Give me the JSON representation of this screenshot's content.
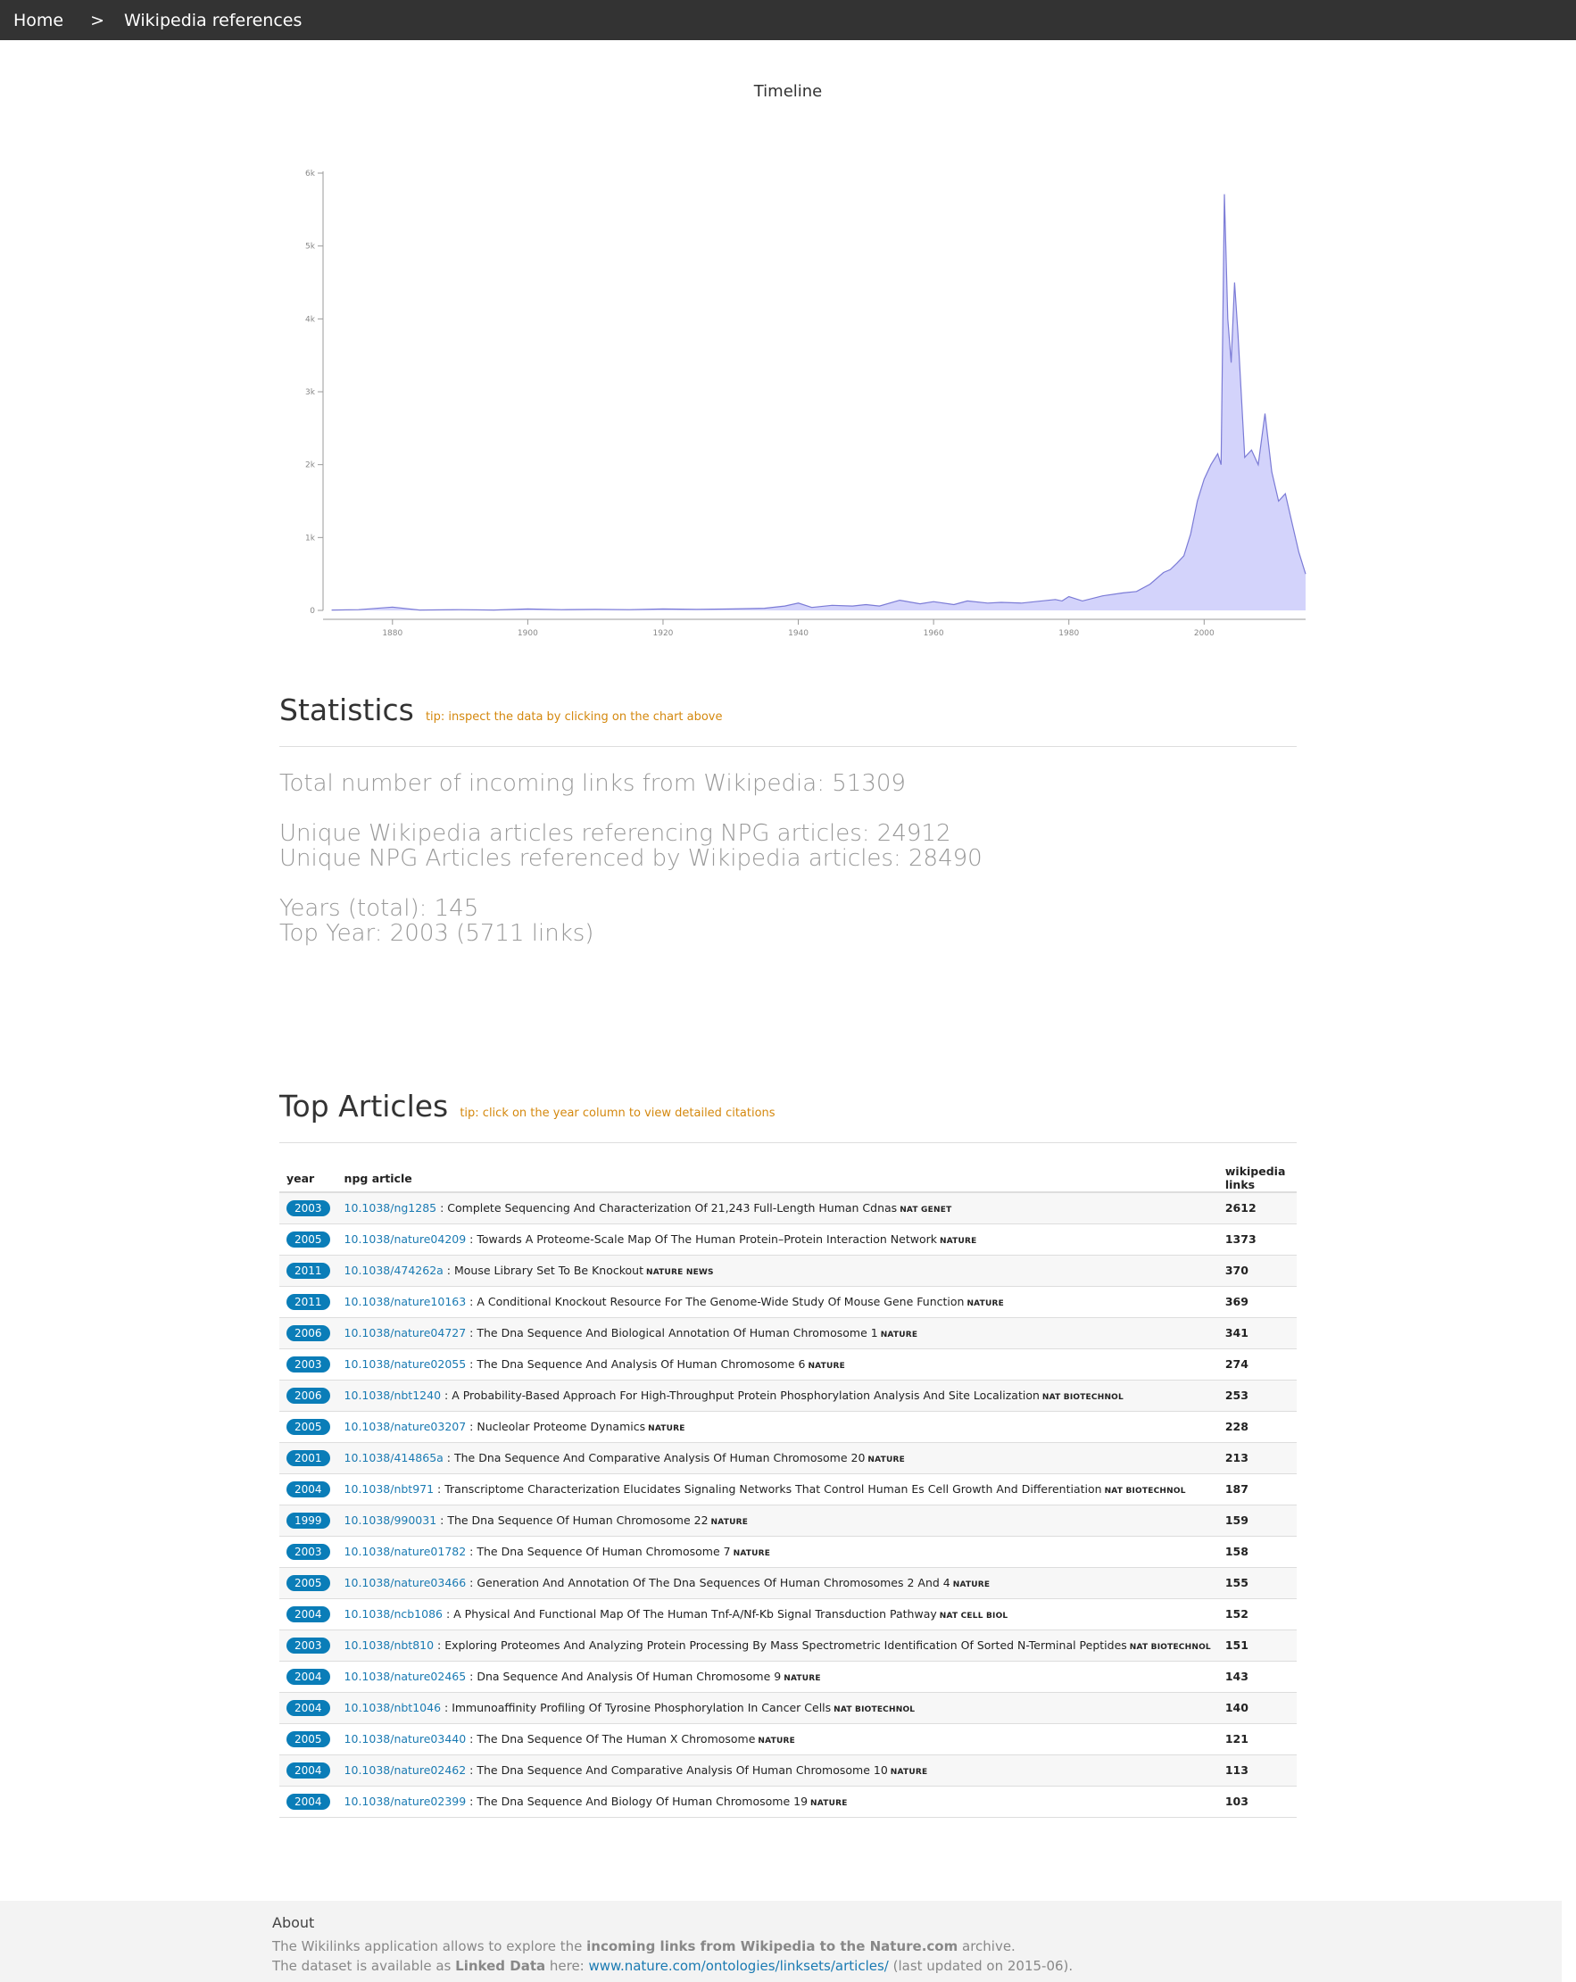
{
  "nav": {
    "home": "Home",
    "separator": ">",
    "current": "Wikipedia references"
  },
  "chart_title": "Timeline",
  "chart_data": {
    "type": "area",
    "title": "Timeline",
    "xlabel": "",
    "ylabel": "",
    "xlim": [
      1870,
      2015
    ],
    "ylim": [
      0,
      6000
    ],
    "x_ticks": [
      "1880",
      "1900",
      "1920",
      "1940",
      "1960",
      "1980",
      "2000"
    ],
    "y_ticks": [
      "0",
      "1k",
      "2k",
      "3k",
      "4k",
      "5k",
      "6k"
    ],
    "grid": false,
    "colors": {
      "fill": "#d3d3fb",
      "stroke": "#7b7bd6"
    },
    "x": [
      1871,
      1875,
      1880,
      1884,
      1890,
      1895,
      1900,
      1905,
      1910,
      1915,
      1920,
      1925,
      1930,
      1935,
      1938,
      1940,
      1942,
      1945,
      1948,
      1950,
      1952,
      1955,
      1958,
      1960,
      1963,
      1965,
      1968,
      1970,
      1973,
      1975,
      1978,
      1979,
      1980,
      1982,
      1985,
      1988,
      1990,
      1992,
      1994,
      1995,
      1996,
      1997,
      1998,
      1999,
      2000,
      2001,
      2002,
      2002.5,
      2003,
      2003.5,
      2004,
      2004.5,
      2005,
      2006,
      2007,
      2008,
      2009,
      2010,
      2011,
      2012,
      2013,
      2014,
      2015
    ],
    "values": [
      5,
      10,
      45,
      5,
      10,
      5,
      20,
      10,
      15,
      10,
      20,
      15,
      20,
      30,
      60,
      100,
      40,
      70,
      60,
      80,
      60,
      140,
      90,
      120,
      80,
      130,
      100,
      110,
      100,
      120,
      150,
      130,
      190,
      130,
      200,
      240,
      260,
      360,
      520,
      560,
      650,
      750,
      1050,
      1500,
      1800,
      2000,
      2150,
      2000,
      5711,
      4000,
      3400,
      4500,
      3800,
      2100,
      2200,
      2000,
      2700,
      1900,
      1500,
      1600,
      1200,
      800,
      500
    ]
  },
  "statistics": {
    "heading": "Statistics",
    "tip": "tip: inspect the data by clicking on the chart above",
    "total_links": "Total number of incoming links from Wikipedia: 51309",
    "unique_wiki": "Unique Wikipedia articles referencing NPG articles: 24912",
    "unique_npg": "Unique NPG Articles referenced by Wikipedia articles: 28490",
    "years_total": "Years (total): 145",
    "top_year": "Top Year: 2003 (5711 links)"
  },
  "top_articles": {
    "heading": "Top Articles",
    "tip": "tip: click on the year column to view detailed citations",
    "columns": {
      "year": "year",
      "article": "npg article",
      "links": "wikipedia links"
    },
    "rows": [
      {
        "year": "2003",
        "doi": "10.1038/ng1285",
        "title": " : Complete Sequencing And Characterization Of 21,243 Full-Length Human Cdnas",
        "journal": "NAT GENET",
        "links": "2612"
      },
      {
        "year": "2005",
        "doi": "10.1038/nature04209",
        "title": " : Towards A Proteome-Scale Map Of The Human Protein–Protein Interaction Network",
        "journal": "NATURE",
        "links": "1373"
      },
      {
        "year": "2011",
        "doi": "10.1038/474262a",
        "title": " : Mouse Library Set To Be Knockout",
        "journal": "NATURE NEWS",
        "links": "370"
      },
      {
        "year": "2011",
        "doi": "10.1038/nature10163",
        "title": " : A Conditional Knockout Resource For The Genome-Wide Study Of Mouse Gene Function",
        "journal": "NATURE",
        "links": "369"
      },
      {
        "year": "2006",
        "doi": "10.1038/nature04727",
        "title": " : The Dna Sequence And Biological Annotation Of Human Chromosome 1",
        "journal": "NATURE",
        "links": "341"
      },
      {
        "year": "2003",
        "doi": "10.1038/nature02055",
        "title": " : The Dna Sequence And Analysis Of Human Chromosome 6",
        "journal": "NATURE",
        "links": "274"
      },
      {
        "year": "2006",
        "doi": "10.1038/nbt1240",
        "title": " : A Probability-Based Approach For High-Throughput Protein Phosphorylation Analysis And Site Localization",
        "journal": "NAT BIOTECHNOL",
        "links": "253"
      },
      {
        "year": "2005",
        "doi": "10.1038/nature03207",
        "title": " : Nucleolar Proteome Dynamics",
        "journal": "NATURE",
        "links": "228"
      },
      {
        "year": "2001",
        "doi": "10.1038/414865a",
        "title": " : The Dna Sequence And Comparative Analysis Of Human Chromosome 20",
        "journal": "NATURE",
        "links": "213"
      },
      {
        "year": "2004",
        "doi": "10.1038/nbt971",
        "title": " : Transcriptome Characterization Elucidates Signaling Networks That Control Human Es Cell Growth And Differentiation",
        "journal": "NAT BIOTECHNOL",
        "links": "187"
      },
      {
        "year": "1999",
        "doi": "10.1038/990031",
        "title": " : The Dna Sequence Of Human Chromosome 22",
        "journal": "NATURE",
        "links": "159"
      },
      {
        "year": "2003",
        "doi": "10.1038/nature01782",
        "title": " : The Dna Sequence Of Human Chromosome 7",
        "journal": "NATURE",
        "links": "158"
      },
      {
        "year": "2005",
        "doi": "10.1038/nature03466",
        "title": " : Generation And Annotation Of The Dna Sequences Of Human Chromosomes 2 And 4",
        "journal": "NATURE",
        "links": "155"
      },
      {
        "year": "2004",
        "doi": "10.1038/ncb1086",
        "title": " : A Physical And Functional Map Of The Human Tnf-A/Nf-Kb Signal Transduction Pathway",
        "journal": "NAT CELL BIOL",
        "links": "152"
      },
      {
        "year": "2003",
        "doi": "10.1038/nbt810",
        "title": " : Exploring Proteomes And Analyzing Protein Processing By Mass Spectrometric Identification Of Sorted N-Terminal Peptides",
        "journal": "NAT BIOTECHNOL",
        "links": "151"
      },
      {
        "year": "2004",
        "doi": "10.1038/nature02465",
        "title": " : Dna Sequence And Analysis Of Human Chromosome 9",
        "journal": "NATURE",
        "links": "143"
      },
      {
        "year": "2004",
        "doi": "10.1038/nbt1046",
        "title": " : Immunoaffinity Profiling Of Tyrosine Phosphorylation In Cancer Cells",
        "journal": "NAT BIOTECHNOL",
        "links": "140"
      },
      {
        "year": "2005",
        "doi": "10.1038/nature03440",
        "title": " : The Dna Sequence Of The Human X Chromosome",
        "journal": "NATURE",
        "links": "121"
      },
      {
        "year": "2004",
        "doi": "10.1038/nature02462",
        "title": " : The Dna Sequence And Comparative Analysis Of Human Chromosome 10",
        "journal": "NATURE",
        "links": "113"
      },
      {
        "year": "2004",
        "doi": "10.1038/nature02399",
        "title": " : The Dna Sequence And Biology Of Human Chromosome 19",
        "journal": "NATURE",
        "links": "103"
      }
    ]
  },
  "footer": {
    "about": "About",
    "line1_a": "The Wikilinks application allows to explore the ",
    "line1_b": "incoming links from Wikipedia to the Nature.com",
    "line1_c": " archive.",
    "line2_a": "The dataset is available as ",
    "line2_b": "Linked Data",
    "line2_c": " here: ",
    "line2_link": "www.nature.com/ontologies/linksets/articles/",
    "line2_d": " (last updated on 2015-06)."
  }
}
